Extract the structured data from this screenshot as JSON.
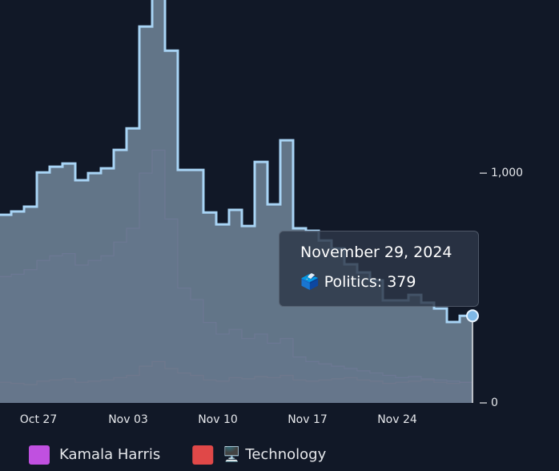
{
  "chart_data": {
    "type": "step-area",
    "x": [
      "2024-10-24",
      "2024-10-25",
      "2024-10-26",
      "2024-10-27",
      "2024-10-28",
      "2024-10-29",
      "2024-10-30",
      "2024-10-31",
      "2024-11-01",
      "2024-11-02",
      "2024-11-03",
      "2024-11-04",
      "2024-11-05",
      "2024-11-06",
      "2024-11-07",
      "2024-11-08",
      "2024-11-09",
      "2024-11-10",
      "2024-11-11",
      "2024-11-12",
      "2024-11-13",
      "2024-11-14",
      "2024-11-15",
      "2024-11-16",
      "2024-11-17",
      "2024-11-18",
      "2024-11-19",
      "2024-11-20",
      "2024-11-21",
      "2024-11-22",
      "2024-11-23",
      "2024-11-24",
      "2024-11-25",
      "2024-11-26",
      "2024-11-27",
      "2024-11-28",
      "2024-11-29"
    ],
    "series": [
      {
        "name": "🗳️ Politics",
        "color": "#a8d4f5",
        "values": [
          819,
          833,
          854,
          1003,
          1028,
          1042,
          969,
          1000,
          1021,
          1101,
          1195,
          1638,
          1780,
          1533,
          1014,
          1014,
          829,
          777,
          840,
          770,
          1049,
          864,
          1143,
          760,
          749,
          707,
          672,
          603,
          568,
          533,
          446,
          446,
          470,
          436,
          411,
          352,
          379
        ]
      },
      {
        "name": "Kamala Harris",
        "color": "#c050e0",
        "values": [
          550,
          560,
          580,
          620,
          640,
          650,
          600,
          620,
          640,
          700,
          760,
          1000,
          1100,
          800,
          500,
          450,
          350,
          300,
          320,
          280,
          300,
          260,
          280,
          200,
          180,
          170,
          160,
          150,
          140,
          130,
          120,
          110,
          115,
          105,
          100,
          95,
          90
        ]
      },
      {
        "name": "🖥️ Technology",
        "color": "#e04848",
        "values": [
          90,
          85,
          80,
          95,
          100,
          105,
          90,
          95,
          100,
          110,
          120,
          160,
          180,
          150,
          130,
          120,
          100,
          95,
          110,
          105,
          115,
          110,
          120,
          100,
          95,
          100,
          105,
          110,
          100,
          95,
          85,
          90,
          95,
          100,
          90,
          85,
          90
        ]
      }
    ],
    "xlim": [
      "2024-10-24",
      "2024-11-30T12:00"
    ],
    "xticks": [
      {
        "value": "2024-10-27",
        "label": "Oct 27"
      },
      {
        "value": "2024-11-03",
        "label": "Nov 03"
      },
      {
        "value": "2024-11-10",
        "label": "Nov 10"
      },
      {
        "value": "2024-11-17",
        "label": "Nov 17"
      },
      {
        "value": "2024-11-24",
        "label": "Nov 24"
      }
    ],
    "ylim": [
      0,
      1750
    ],
    "yticks": [
      0,
      {
        "value": 1000,
        "label": "1,000"
      }
    ],
    "tooltip": {
      "title": "November 29, 2024"
    }
  }
}
